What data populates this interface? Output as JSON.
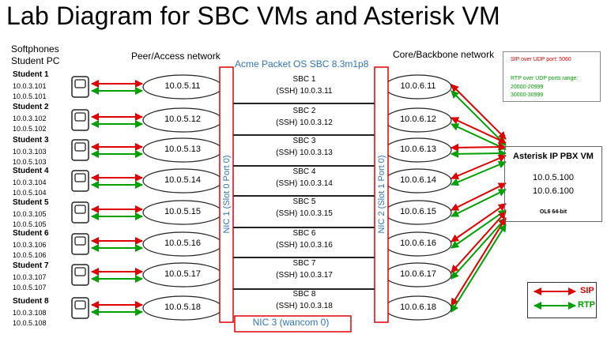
{
  "title": "Lab Diagram for SBC VMs and Asterisk VM",
  "left_header": {
    "line1": "Softphones",
    "line2": "Student PC"
  },
  "peer_header": "Peer/Access network",
  "core_header": "Core/Backbone network",
  "acme_header": "Acme Packet OS SBC 8.3m1p8",
  "students": [
    {
      "name": "Student 1",
      "ip_a": "10.0.3.101",
      "ip_b": "10.0.5.101",
      "peer_ip": "10.0.5.11",
      "sbc_name": "SBC 1",
      "sbc_ssh": "(SSH) 10.0.3.11",
      "core_ip": "10.0.6.11"
    },
    {
      "name": "Student 2",
      "ip_a": "10.0.3.102",
      "ip_b": "10.0.5.102",
      "peer_ip": "10.0.5.12",
      "sbc_name": "SBC 2",
      "sbc_ssh": "(SSH) 10.0.3.12",
      "core_ip": "10.0.6.12"
    },
    {
      "name": "Student 3",
      "ip_a": "10.0.3.103",
      "ip_b": "10.0.5.103",
      "peer_ip": "10.0.5.13",
      "sbc_name": "SBC 3",
      "sbc_ssh": "(SSH) 10.0.3.13",
      "core_ip": "10.0.6.13"
    },
    {
      "name": "Student 4",
      "ip_a": "10.0.3.104",
      "ip_b": "10.0.5.104",
      "peer_ip": "10.0.5.14",
      "sbc_name": "SBC 4",
      "sbc_ssh": "(SSH) 10.0.3.14",
      "core_ip": "10.0.6.14"
    },
    {
      "name": "Student 5",
      "ip_a": "10.0.3.105",
      "ip_b": "10.0.5.105",
      "peer_ip": "10.0.5.15",
      "sbc_name": "SBC 5",
      "sbc_ssh": "(SSH) 10.0.3.15",
      "core_ip": "10.0.6.15"
    },
    {
      "name": "Student 6",
      "ip_a": "10.0.3.106",
      "ip_b": "10.0.5.106",
      "peer_ip": "10.0.5.16",
      "sbc_name": "SBC 6",
      "sbc_ssh": "(SSH) 10.0.3.16",
      "core_ip": "10.0.6.16"
    },
    {
      "name": "Student 7",
      "ip_a": "10.0.3.107",
      "ip_b": "10.0.5.107",
      "peer_ip": "10.0.5.17",
      "sbc_name": "SBC 7",
      "sbc_ssh": "(SSH) 10.0.3.17",
      "core_ip": "10.0.6.17"
    },
    {
      "name": "Student 8",
      "ip_a": "10.0.3.108",
      "ip_b": "10.0.5.108",
      "peer_ip": "10.0.5.18",
      "sbc_name": "SBC 8",
      "sbc_ssh": "(SSH) 10.0.3.18",
      "core_ip": "10.0.6.18"
    }
  ],
  "nic1_label": "NIC 1 (Slot 0 Port 0)",
  "nic2_label": "NIC 2 (Slot 1 Port 0)",
  "nic3_label": "NIC 3 (wancom 0)",
  "port_legend": {
    "sip_line": "SIP over UDP port: 5060",
    "rtp_line1": "RTP over UDP ports range:",
    "rtp_line2": "20000-20999",
    "rtp_line3": "30000-30999"
  },
  "pbx": {
    "title": "Asterisk IP PBX VM",
    "ip1": "10.0.5.100",
    "ip2": "10.0.6.100",
    "os": "OL6 64-bit"
  },
  "arrow_legend": {
    "sip": "SIP",
    "rtp": "RTP"
  },
  "colors": {
    "sip": "#e00000",
    "rtp": "#00a000",
    "nic": "#2E75B6",
    "nic_border": "#e00000"
  }
}
